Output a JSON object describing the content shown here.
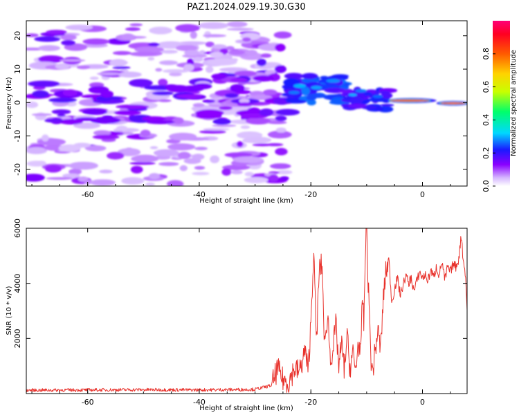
{
  "title": "PAZ1.2024.029.19.30.G30",
  "chart_data": [
    {
      "type": "heatmap",
      "xlabel": "Height of straight line (km)",
      "ylabel": "Frequency (Hz)",
      "xlim": [
        -71,
        8
      ],
      "ylim": [
        -25,
        24.5
      ],
      "xticks": [
        -60,
        -40,
        -20,
        0
      ],
      "yticks": [
        -20,
        -10,
        0,
        10,
        20
      ],
      "colorbar": {
        "label": "Normalized spectral amplitude",
        "range": [
          0,
          1
        ],
        "ticks": [
          0.0,
          0.2,
          0.4,
          0.6,
          0.8
        ],
        "colormap": "rainbow (white-violet-blue-cyan-green-yellow-red-magenta)"
      },
      "regions": [
        {
          "x_range": [
            -71,
            -25
          ],
          "y_range": [
            -25,
            24.5
          ],
          "level": "0.05-0.20",
          "pattern": "scattered patches"
        },
        {
          "x_range": [
            -24,
            -14
          ],
          "y_range": [
            0,
            8
          ],
          "level": "0.2-0.35",
          "pattern": "band"
        },
        {
          "x_range": [
            -14,
            -6
          ],
          "y_range": [
            -2,
            5
          ],
          "level": "0.15-0.3",
          "pattern": "band"
        },
        {
          "x_range": [
            -6,
            2
          ],
          "y_range": [
            0,
            1.5
          ],
          "level": "0.9-0.95",
          "pattern": "narrow line"
        },
        {
          "x_range": [
            3,
            8
          ],
          "y_range": [
            -1,
            0.5
          ],
          "level": "0.9-0.95",
          "pattern": "narrow line"
        }
      ]
    },
    {
      "type": "line",
      "xlabel": "Height of straight line (km)",
      "ylabel": "SNR (10 * v/v)",
      "xlim": [
        -71,
        8
      ],
      "ylim": [
        0,
        6000
      ],
      "xticks": [
        -60,
        -40,
        -20,
        0
      ],
      "yticks": [
        2000,
        4000,
        6000
      ],
      "series": [
        {
          "color": "#e8312b",
          "x": [
            -71,
            -60,
            -50,
            -40,
            -30,
            -27,
            -26,
            -25,
            -24,
            -23,
            -22,
            -21,
            -20.5,
            -20,
            -19.5,
            -19,
            -18.5,
            -18,
            -17.5,
            -17,
            -16.5,
            -16,
            -15.5,
            -15,
            -14.5,
            -14,
            -13.5,
            -13,
            -12.5,
            -12,
            -11.5,
            -11,
            -10.8,
            -10.5,
            -10.2,
            -10,
            -9.8,
            -9.5,
            -9.2,
            -9,
            -8.5,
            -8,
            -7.5,
            -7,
            -6.5,
            -6,
            -5.5,
            -5,
            -4.5,
            -4,
            -3.5,
            -3,
            -2.5,
            -2,
            -1.5,
            -1,
            -0.5,
            0,
            0.5,
            1,
            1.5,
            2,
            2.5,
            3,
            3.5,
            4,
            4.5,
            5,
            5.5,
            6,
            6.5,
            7,
            7.3,
            7.6,
            8
          ],
          "values": [
            120,
            130,
            140,
            130,
            150,
            300,
            900,
            500,
            400,
            900,
            800,
            1600,
            700,
            2600,
            5200,
            1800,
            4500,
            4700,
            1500,
            3000,
            1200,
            1700,
            2500,
            1000,
            1800,
            900,
            2100,
            900,
            1500,
            800,
            1900,
            1300,
            3600,
            2500,
            5500,
            6200,
            4500,
            2800,
            1200,
            700,
            1500,
            2300,
            1600,
            3500,
            4500,
            4800,
            3300,
            3800,
            4200,
            3600,
            3900,
            4300,
            4000,
            4200,
            3700,
            4100,
            4400,
            4200,
            4300,
            4100,
            4500,
            4200,
            4600,
            4300,
            4800,
            4100,
            4600,
            4400,
            4700,
            4600,
            4900,
            5800,
            4800,
            4600,
            3100
          ]
        }
      ]
    }
  ]
}
